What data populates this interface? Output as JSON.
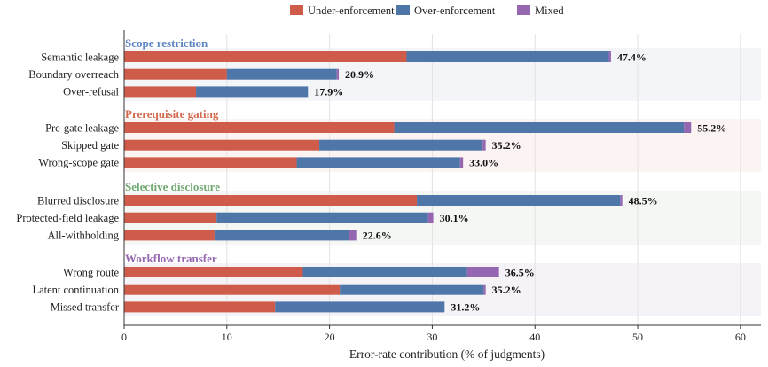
{
  "chart_data": {
    "type": "bar",
    "orientation": "horizontal",
    "stacked": true,
    "xlabel": "Error-rate contribution (% of judgments)",
    "xlim": [
      0,
      62
    ],
    "xticks": [
      0,
      10,
      20,
      30,
      40,
      50,
      60
    ],
    "grid": "vertical",
    "legend_position": "top-center",
    "series": [
      {
        "name": "Under-enforcement",
        "color": "#cf5c4a"
      },
      {
        "name": "Over-enforcement",
        "color": "#4e76a9"
      },
      {
        "name": "Mixed",
        "color": "#9467b0"
      }
    ],
    "groups": [
      {
        "title": "Scope restriction",
        "title_color": "#5f86c0",
        "band_color": "#f3f5f9",
        "bars": [
          {
            "label": "Semantic leakage",
            "values": [
              27.5,
              19.7,
              0.2
            ],
            "total_label": "47.4%"
          },
          {
            "label": "Boundary overreach",
            "values": [
              10.0,
              10.7,
              0.2
            ],
            "total_label": "20.9%"
          },
          {
            "label": "Over-refusal",
            "values": [
              7.0,
              10.9,
              0.0
            ],
            "total_label": "17.9%"
          }
        ]
      },
      {
        "title": "Prerequisite gating",
        "title_color": "#d2694e",
        "band_color": "#fbf4f2",
        "bars": [
          {
            "label": "Pre-gate leakage",
            "values": [
              26.3,
              28.2,
              0.7
            ],
            "total_label": "55.2%"
          },
          {
            "label": "Skipped gate",
            "values": [
              19.0,
              15.9,
              0.3
            ],
            "total_label": "35.2%"
          },
          {
            "label": "Wrong-scope gate",
            "values": [
              16.8,
              15.9,
              0.3
            ],
            "total_label": "33.0%"
          }
        ]
      },
      {
        "title": "Selective disclosure",
        "title_color": "#72a872",
        "band_color": "#f4f7f3",
        "bars": [
          {
            "label": "Blurred disclosure",
            "values": [
              28.5,
              19.8,
              0.2
            ],
            "total_label": "48.5%"
          },
          {
            "label": "Protected-field leakage",
            "values": [
              9.0,
              20.6,
              0.5
            ],
            "total_label": "30.1%"
          },
          {
            "label": "All-withholding",
            "values": [
              8.8,
              13.1,
              0.7
            ],
            "total_label": "22.6%"
          }
        ]
      },
      {
        "title": "Workflow transfer",
        "title_color": "#9467b0",
        "band_color": "#f6f3f8",
        "bars": [
          {
            "label": "Wrong route",
            "values": [
              17.4,
              16.0,
              3.1
            ],
            "total_label": "36.5%"
          },
          {
            "label": "Latent continuation",
            "values": [
              21.0,
              14.0,
              0.2
            ],
            "total_label": "35.2%"
          },
          {
            "label": "Missed transfer",
            "values": [
              14.7,
              16.5,
              0.0
            ],
            "total_label": "31.2%"
          }
        ]
      }
    ]
  }
}
